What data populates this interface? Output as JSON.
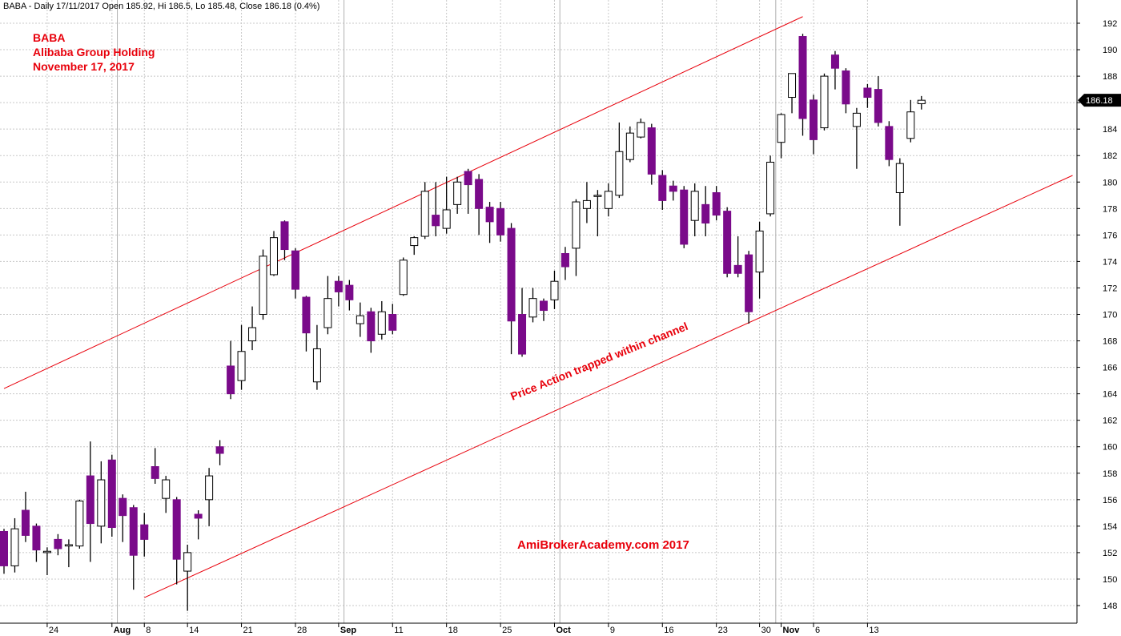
{
  "header": "BABA - Daily 17/11/2017 Open 185.92, Hi 186.5, Lo 185.48, Close 186.18 (0.4%)",
  "annotation": {
    "line1": "BABA",
    "line2": "Alibaba Group Holding",
    "line3": "November 17, 2017"
  },
  "watermark": "AmiBrokerAcademy.com  2017",
  "channel_label": "Price Action trapped within channel",
  "last_price_label": "186.18",
  "colors": {
    "bearish": "#7a0a8a",
    "bullish": "#ffffff",
    "channel": "#e8000b",
    "annotation": "#e8000b"
  },
  "chart_data": {
    "type": "candlestick",
    "ylim": [
      146.5,
      193.5
    ],
    "yticks": [
      148,
      150,
      152,
      154,
      156,
      158,
      160,
      162,
      164,
      166,
      168,
      170,
      172,
      174,
      176,
      178,
      180,
      182,
      184,
      186,
      188,
      190,
      192
    ],
    "x_tick_labels": [
      {
        "label": "24",
        "bar": 4,
        "month": false
      },
      {
        "label": "Aug",
        "bar": 10,
        "month": true
      },
      {
        "label": "8",
        "bar": 13,
        "month": false
      },
      {
        "label": "14",
        "bar": 17,
        "month": false
      },
      {
        "label": "21",
        "bar": 22,
        "month": false
      },
      {
        "label": "28",
        "bar": 27,
        "month": false
      },
      {
        "label": "Sep",
        "bar": 31,
        "month": true
      },
      {
        "label": "11",
        "bar": 36,
        "month": false
      },
      {
        "label": "18",
        "bar": 41,
        "month": false
      },
      {
        "label": "25",
        "bar": 46,
        "month": false
      },
      {
        "label": "Oct",
        "bar": 51,
        "month": true
      },
      {
        "label": "9",
        "bar": 56,
        "month": false
      },
      {
        "label": "16",
        "bar": 61,
        "month": false
      },
      {
        "label": "23",
        "bar": 66,
        "month": false
      },
      {
        "label": "30",
        "bar": 70,
        "month": false
      },
      {
        "label": "Nov",
        "bar": 72,
        "month": true
      },
      {
        "label": "6",
        "bar": 75,
        "month": false
      },
      {
        "label": "13",
        "bar": 80,
        "month": false
      }
    ],
    "month_separator_bars": [
      10.5,
      31.5,
      51.5,
      71.5
    ],
    "candles": [
      {
        "o": 153.6,
        "h": 153.8,
        "l": 150.4,
        "c": 151.0
      },
      {
        "o": 151.0,
        "h": 154.6,
        "l": 150.5,
        "c": 153.8
      },
      {
        "o": 155.2,
        "h": 156.6,
        "l": 152.8,
        "c": 153.3
      },
      {
        "o": 154.0,
        "h": 154.2,
        "l": 151.3,
        "c": 152.2
      },
      {
        "o": 152.0,
        "h": 152.4,
        "l": 150.3,
        "c": 152.1
      },
      {
        "o": 153.0,
        "h": 153.4,
        "l": 151.8,
        "c": 152.3
      },
      {
        "o": 152.5,
        "h": 153.0,
        "l": 150.9,
        "c": 152.6
      },
      {
        "o": 152.5,
        "h": 156.0,
        "l": 152.3,
        "c": 155.9
      },
      {
        "o": 157.8,
        "h": 160.4,
        "l": 151.3,
        "c": 154.2
      },
      {
        "o": 154.0,
        "h": 158.9,
        "l": 152.7,
        "c": 157.5
      },
      {
        "o": 159.0,
        "h": 159.4,
        "l": 153.2,
        "c": 153.9
      },
      {
        "o": 156.1,
        "h": 156.4,
        "l": 152.8,
        "c": 154.8
      },
      {
        "o": 155.4,
        "h": 155.6,
        "l": 149.2,
        "c": 151.8
      },
      {
        "o": 154.1,
        "h": 155.0,
        "l": 151.7,
        "c": 153.0
      },
      {
        "o": 158.5,
        "h": 159.9,
        "l": 157.2,
        "c": 157.6
      },
      {
        "o": 156.1,
        "h": 157.8,
        "l": 155.0,
        "c": 157.5
      },
      {
        "o": 156.0,
        "h": 156.2,
        "l": 149.6,
        "c": 151.5
      },
      {
        "o": 150.6,
        "h": 152.6,
        "l": 147.6,
        "c": 152.0
      },
      {
        "o": 154.9,
        "h": 155.2,
        "l": 153.0,
        "c": 154.6
      },
      {
        "o": 156.0,
        "h": 158.4,
        "l": 154.0,
        "c": 157.8
      },
      {
        "o": 160.0,
        "h": 160.5,
        "l": 158.6,
        "c": 159.5
      },
      {
        "o": 166.1,
        "h": 168.0,
        "l": 163.6,
        "c": 164.0
      },
      {
        "o": 165.0,
        "h": 169.2,
        "l": 164.3,
        "c": 167.2
      },
      {
        "o": 168.0,
        "h": 170.6,
        "l": 167.3,
        "c": 169.0
      },
      {
        "o": 170.0,
        "h": 174.9,
        "l": 169.6,
        "c": 174.4
      },
      {
        "o": 173.0,
        "h": 176.3,
        "l": 172.9,
        "c": 175.8
      },
      {
        "o": 177.0,
        "h": 177.1,
        "l": 174.1,
        "c": 174.9
      },
      {
        "o": 174.8,
        "h": 175.0,
        "l": 171.2,
        "c": 171.9
      },
      {
        "o": 171.3,
        "h": 171.4,
        "l": 167.2,
        "c": 168.6
      },
      {
        "o": 164.9,
        "h": 169.2,
        "l": 164.3,
        "c": 167.4
      },
      {
        "o": 169.0,
        "h": 172.9,
        "l": 168.5,
        "c": 171.2
      },
      {
        "o": 172.5,
        "h": 172.9,
        "l": 170.6,
        "c": 171.7
      },
      {
        "o": 172.2,
        "h": 172.6,
        "l": 170.3,
        "c": 171.1
      },
      {
        "o": 169.3,
        "h": 170.9,
        "l": 168.3,
        "c": 169.9
      },
      {
        "o": 170.2,
        "h": 170.5,
        "l": 167.1,
        "c": 168.0
      },
      {
        "o": 168.5,
        "h": 171.0,
        "l": 168.1,
        "c": 170.2
      },
      {
        "o": 170.0,
        "h": 170.8,
        "l": 168.5,
        "c": 168.8
      },
      {
        "o": 171.5,
        "h": 174.3,
        "l": 171.4,
        "c": 174.1
      },
      {
        "o": 175.2,
        "h": 175.9,
        "l": 174.5,
        "c": 175.8
      },
      {
        "o": 175.9,
        "h": 180.0,
        "l": 175.7,
        "c": 179.3
      },
      {
        "o": 177.5,
        "h": 180.0,
        "l": 175.9,
        "c": 176.7
      },
      {
        "o": 176.5,
        "h": 180.4,
        "l": 176.1,
        "c": 177.9
      },
      {
        "o": 178.3,
        "h": 180.4,
        "l": 177.6,
        "c": 180.0
      },
      {
        "o": 180.8,
        "h": 181.0,
        "l": 177.6,
        "c": 179.8
      },
      {
        "o": 180.2,
        "h": 180.6,
        "l": 176.0,
        "c": 178.0
      },
      {
        "o": 178.1,
        "h": 178.5,
        "l": 175.4,
        "c": 177.0
      },
      {
        "o": 178.0,
        "h": 178.5,
        "l": 175.5,
        "c": 176.0
      },
      {
        "o": 176.5,
        "h": 176.9,
        "l": 167.0,
        "c": 169.5
      },
      {
        "o": 170.0,
        "h": 172.0,
        "l": 166.8,
        "c": 167.0
      },
      {
        "o": 169.8,
        "h": 172.0,
        "l": 169.4,
        "c": 171.2
      },
      {
        "o": 171.0,
        "h": 171.2,
        "l": 169.5,
        "c": 170.3
      },
      {
        "o": 171.1,
        "h": 173.3,
        "l": 170.4,
        "c": 172.5
      },
      {
        "o": 174.6,
        "h": 175.1,
        "l": 172.6,
        "c": 173.6
      },
      {
        "o": 175.0,
        "h": 178.7,
        "l": 172.9,
        "c": 178.5
      },
      {
        "o": 178.0,
        "h": 180.0,
        "l": 176.9,
        "c": 178.6
      },
      {
        "o": 179.0,
        "h": 179.4,
        "l": 175.9,
        "c": 179.0
      },
      {
        "o": 178.0,
        "h": 179.9,
        "l": 177.4,
        "c": 179.3
      },
      {
        "o": 179.0,
        "h": 184.5,
        "l": 178.8,
        "c": 182.3
      },
      {
        "o": 181.7,
        "h": 184.2,
        "l": 181.5,
        "c": 183.7
      },
      {
        "o": 183.4,
        "h": 184.8,
        "l": 183.3,
        "c": 184.5
      },
      {
        "o": 184.1,
        "h": 184.4,
        "l": 179.8,
        "c": 180.6
      },
      {
        "o": 180.5,
        "h": 180.9,
        "l": 177.9,
        "c": 178.6
      },
      {
        "o": 179.7,
        "h": 180.1,
        "l": 178.6,
        "c": 179.3
      },
      {
        "o": 179.4,
        "h": 179.7,
        "l": 175.0,
        "c": 175.3
      },
      {
        "o": 177.1,
        "h": 179.9,
        "l": 175.9,
        "c": 179.3
      },
      {
        "o": 178.3,
        "h": 179.7,
        "l": 175.9,
        "c": 176.9
      },
      {
        "o": 179.2,
        "h": 179.7,
        "l": 177.1,
        "c": 177.5
      },
      {
        "o": 177.8,
        "h": 178.1,
        "l": 172.8,
        "c": 173.1
      },
      {
        "o": 173.7,
        "h": 175.9,
        "l": 172.8,
        "c": 173.1
      },
      {
        "o": 174.5,
        "h": 174.8,
        "l": 169.3,
        "c": 170.2
      },
      {
        "o": 173.2,
        "h": 177.0,
        "l": 171.2,
        "c": 176.3
      },
      {
        "o": 177.6,
        "h": 182.0,
        "l": 177.4,
        "c": 181.5
      },
      {
        "o": 183.0,
        "h": 185.2,
        "l": 181.8,
        "c": 185.1
      },
      {
        "o": 186.4,
        "h": 188.0,
        "l": 185.2,
        "c": 188.2
      },
      {
        "o": 191.0,
        "h": 191.2,
        "l": 183.5,
        "c": 184.8
      },
      {
        "o": 186.2,
        "h": 186.6,
        "l": 182.1,
        "c": 183.2
      },
      {
        "o": 184.1,
        "h": 188.2,
        "l": 183.9,
        "c": 188.0
      },
      {
        "o": 189.6,
        "h": 189.9,
        "l": 187.0,
        "c": 188.6
      },
      {
        "o": 188.4,
        "h": 188.6,
        "l": 185.2,
        "c": 185.9
      },
      {
        "o": 184.2,
        "h": 185.6,
        "l": 181.0,
        "c": 185.2
      },
      {
        "o": 187.1,
        "h": 187.4,
        "l": 185.6,
        "c": 186.4
      },
      {
        "o": 187.0,
        "h": 188.0,
        "l": 184.2,
        "c": 184.5
      },
      {
        "o": 184.2,
        "h": 184.6,
        "l": 181.2,
        "c": 181.7
      },
      {
        "o": 179.2,
        "h": 181.8,
        "l": 176.7,
        "c": 181.4
      },
      {
        "o": 183.3,
        "h": 186.2,
        "l": 183.0,
        "c": 185.3
      },
      {
        "o": 185.92,
        "h": 186.5,
        "l": 185.48,
        "c": 186.18
      }
    ],
    "channel_upper": {
      "from": {
        "bar": 0,
        "y": 164.4
      },
      "to": {
        "bar": 74,
        "y": 192.5
      }
    },
    "channel_lower": {
      "from": {
        "bar": 13,
        "y": 148.6
      },
      "to": {
        "bar": 99,
        "y": 180.5
      }
    },
    "last_close": 186.18
  }
}
